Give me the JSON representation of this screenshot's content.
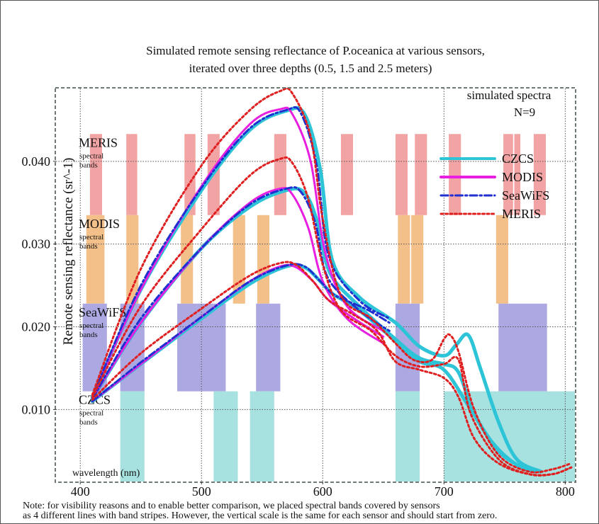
{
  "chart_data": {
    "type": "line",
    "title_line1": "Simulated remote sensing reflectance of P.oceanica at various sensors,",
    "title_line2": "iterated over three depths (0.5, 1.5 and 2.5 meters)",
    "xlabel": "wavelength (nm)",
    "ylabel": "Remote sensing reflectance (sr^-1)",
    "xlim": [
      380,
      808
    ],
    "ylim": [
      0.0013,
      0.0488
    ],
    "xticks": [
      400,
      500,
      600,
      700,
      800
    ],
    "yticks": [
      0.01,
      0.02,
      0.03,
      0.04
    ],
    "ytick_labels": [
      "0.010",
      "0.020",
      "0.030",
      "0.040"
    ],
    "grid": true,
    "annotation": [
      "simulated spectra",
      "N=9"
    ],
    "legend_position": "top-right",
    "legend": [
      {
        "label": "CZCS",
        "color": "#2ec4d8",
        "style": "solid"
      },
      {
        "label": "MODIS",
        "color": "#e81ee0",
        "style": "solid"
      },
      {
        "label": "SeaWiFS",
        "color": "#1f2fd0",
        "style": "dashdot"
      },
      {
        "label": "MERIS",
        "color": "#e02020",
        "style": "dotted"
      }
    ],
    "band_groups": [
      {
        "sensor": "MERIS",
        "label": "MERIS",
        "sublabel": "spectral bands",
        "color": "#f2a3a3",
        "y_range": [
          0.0335,
          0.0433
        ],
        "bands": [
          [
            408,
            418
          ],
          [
            438,
            447
          ],
          [
            486,
            495
          ],
          [
            505,
            515
          ],
          [
            560,
            570
          ],
          [
            615,
            625
          ],
          [
            660,
            670
          ],
          [
            676,
            686
          ],
          [
            704,
            714
          ],
          [
            749,
            757
          ],
          [
            758,
            763
          ],
          [
            774,
            784
          ]
        ]
      },
      {
        "sensor": "MODIS",
        "label": "MODIS",
        "sublabel": "spectral bands",
        "color": "#f4c08a",
        "y_range": [
          0.0228,
          0.0335
        ],
        "bands": [
          [
            405,
            420
          ],
          [
            438,
            448
          ],
          [
            483,
            493
          ],
          [
            526,
            536
          ],
          [
            546,
            556
          ],
          [
            662,
            672
          ],
          [
            673,
            683
          ],
          [
            743,
            753
          ]
        ]
      },
      {
        "sensor": "SeaWiFS",
        "label": "SeaWiFS",
        "sublabel": "spectral bands",
        "color": "#aca8e2",
        "y_range": [
          0.0122,
          0.0228
        ],
        "bands": [
          [
            402,
            422
          ],
          [
            433,
            453
          ],
          [
            480,
            500
          ],
          [
            500,
            520
          ],
          [
            545,
            565
          ],
          [
            660,
            680
          ],
          [
            745,
            785
          ]
        ]
      },
      {
        "sensor": "CZCS",
        "label": "CZCS",
        "sublabel": "spectral bands",
        "color": "#a8e2e0",
        "y_range": [
          0.0013,
          0.0122
        ],
        "bands": [
          [
            433,
            453
          ],
          [
            510,
            530
          ],
          [
            540,
            560
          ],
          [
            660,
            680
          ],
          [
            700,
            808
          ]
        ]
      }
    ],
    "series": [
      {
        "name": "CZCS",
        "color": "#2ec4d8",
        "style": "solid",
        "width": 5,
        "curves": [
          [
            [
              410,
              0.0115
            ],
            [
              450,
              0.0245
            ],
            [
              500,
              0.0365
            ],
            [
              540,
              0.0438
            ],
            [
              570,
              0.0461
            ],
            [
              585,
              0.0457
            ],
            [
              598,
              0.039
            ],
            [
              608,
              0.028
            ],
            [
              630,
              0.0236
            ],
            [
              660,
              0.0205
            ],
            [
              680,
              0.0176
            ],
            [
              700,
              0.0165
            ],
            [
              710,
              0.0178
            ],
            [
              720,
              0.019
            ],
            [
              730,
              0.015
            ],
            [
              745,
              0.0085
            ],
            [
              760,
              0.004
            ],
            [
              780,
              0.0025
            ]
          ],
          [
            [
              410,
              0.0113
            ],
            [
              450,
              0.0205
            ],
            [
              500,
              0.0295
            ],
            [
              540,
              0.0345
            ],
            [
              570,
              0.0365
            ],
            [
              585,
              0.0362
            ],
            [
              596,
              0.0325
            ],
            [
              606,
              0.0265
            ],
            [
              630,
              0.0225
            ],
            [
              660,
              0.0185
            ],
            [
              680,
              0.0162
            ],
            [
              700,
              0.0155
            ],
            [
              712,
              0.0145
            ],
            [
              725,
              0.0095
            ],
            [
              745,
              0.005
            ],
            [
              765,
              0.003
            ],
            [
              780,
              0.0025
            ]
          ],
          [
            [
              410,
              0.011
            ],
            [
              450,
              0.0155
            ],
            [
              500,
              0.021
            ],
            [
              540,
              0.0252
            ],
            [
              570,
              0.0273
            ],
            [
              585,
              0.0272
            ],
            [
              598,
              0.0255
            ],
            [
              608,
              0.024
            ],
            [
              630,
              0.022
            ],
            [
              660,
              0.0183
            ],
            [
              680,
              0.0158
            ],
            [
              700,
              0.0148
            ],
            [
              720,
              0.0105
            ],
            [
              740,
              0.006
            ],
            [
              760,
              0.0033
            ],
            [
              775,
              0.0025
            ]
          ]
        ]
      },
      {
        "name": "MODIS",
        "color": "#e81ee0",
        "style": "solid",
        "width": 3,
        "curves": [
          [
            [
              410,
              0.0115
            ],
            [
              450,
              0.0245
            ],
            [
              500,
              0.037
            ],
            [
              540,
              0.0445
            ],
            [
              565,
              0.0463
            ],
            [
              575,
              0.0457
            ],
            [
              590,
              0.04
            ],
            [
              602,
              0.029
            ],
            [
              620,
              0.0225
            ],
            [
              650,
              0.0195
            ]
          ],
          [
            [
              410,
              0.0113
            ],
            [
              450,
              0.0205
            ],
            [
              500,
              0.0295
            ],
            [
              540,
              0.035
            ],
            [
              565,
              0.0367
            ],
            [
              575,
              0.036
            ],
            [
              588,
              0.032
            ],
            [
              600,
              0.0255
            ],
            [
              620,
              0.021
            ],
            [
              650,
              0.018
            ]
          ],
          [
            [
              410,
              0.011
            ],
            [
              450,
              0.0155
            ],
            [
              500,
              0.0212
            ],
            [
              540,
              0.0255
            ],
            [
              565,
              0.0273
            ],
            [
              578,
              0.0272
            ],
            [
              592,
              0.0255
            ],
            [
              605,
              0.0232
            ],
            [
              630,
              0.0206
            ],
            [
              650,
              0.0188
            ]
          ]
        ]
      },
      {
        "name": "SeaWiFS",
        "color": "#1f2fd0",
        "style": "dashdot",
        "width": 3,
        "curves": [
          [
            [
              410,
              0.0115
            ],
            [
              450,
              0.025
            ],
            [
              500,
              0.0368
            ],
            [
              540,
              0.044
            ],
            [
              570,
              0.0462
            ],
            [
              582,
              0.0458
            ],
            [
              595,
              0.0395
            ],
            [
              605,
              0.0285
            ],
            [
              630,
              0.0232
            ],
            [
              655,
              0.021
            ]
          ],
          [
            [
              410,
              0.0113
            ],
            [
              450,
              0.021
            ],
            [
              500,
              0.0295
            ],
            [
              540,
              0.0348
            ],
            [
              570,
              0.0367
            ],
            [
              582,
              0.0363
            ],
            [
              594,
              0.0325
            ],
            [
              604,
              0.026
            ],
            [
              630,
              0.022
            ],
            [
              655,
              0.0195
            ]
          ],
          [
            [
              410,
              0.011
            ],
            [
              450,
              0.0157
            ],
            [
              500,
              0.0212
            ],
            [
              540,
              0.0255
            ],
            [
              570,
              0.0274
            ],
            [
              585,
              0.0273
            ],
            [
              598,
              0.0255
            ],
            [
              610,
              0.0238
            ],
            [
              635,
              0.0222
            ],
            [
              655,
              0.0205
            ]
          ]
        ]
      },
      {
        "name": "MERIS",
        "color": "#e02020",
        "style": "dotted",
        "width": 3,
        "curves": [
          [
            [
              410,
              0.0118
            ],
            [
              450,
              0.027
            ],
            [
              500,
              0.0395
            ],
            [
              540,
              0.0462
            ],
            [
              565,
              0.0485
            ],
            [
              575,
              0.0482
            ],
            [
              590,
              0.043
            ],
            [
              600,
              0.033
            ],
            [
              615,
              0.0238
            ],
            [
              640,
              0.021
            ],
            [
              660,
              0.018
            ],
            [
              675,
              0.016
            ],
            [
              690,
              0.016
            ],
            [
              700,
              0.0185
            ],
            [
              705,
              0.019
            ],
            [
              712,
              0.017
            ],
            [
              725,
              0.01
            ],
            [
              745,
              0.0045
            ],
            [
              770,
              0.0025
            ],
            [
              790,
              0.0028
            ],
            [
              805,
              0.0035
            ]
          ],
          [
            [
              410,
              0.0115
            ],
            [
              450,
              0.0225
            ],
            [
              500,
              0.0318
            ],
            [
              540,
              0.0383
            ],
            [
              565,
              0.0403
            ],
            [
              575,
              0.0398
            ],
            [
              588,
              0.0355
            ],
            [
              600,
              0.0275
            ],
            [
              615,
              0.022
            ],
            [
              640,
              0.0195
            ],
            [
              660,
              0.0165
            ],
            [
              680,
              0.0152
            ],
            [
              700,
              0.0155
            ],
            [
              712,
              0.016
            ],
            [
              722,
              0.0095
            ],
            [
              745,
              0.004
            ],
            [
              770,
              0.0022
            ],
            [
              790,
              0.0022
            ],
            [
              805,
              0.003
            ]
          ],
          [
            [
              410,
              0.0112
            ],
            [
              450,
              0.0168
            ],
            [
              500,
              0.0222
            ],
            [
              540,
              0.0262
            ],
            [
              565,
              0.0277
            ],
            [
              578,
              0.0275
            ],
            [
              592,
              0.0255
            ],
            [
              605,
              0.0232
            ],
            [
              625,
              0.0215
            ],
            [
              645,
              0.0195
            ],
            [
              660,
              0.0158
            ],
            [
              680,
              0.0148
            ],
            [
              700,
              0.0138
            ],
            [
              712,
              0.0115
            ],
            [
              725,
              0.0065
            ],
            [
              745,
              0.0035
            ],
            [
              770,
              0.0022
            ],
            [
              790,
              0.0022
            ],
            [
              805,
              0.003
            ]
          ]
        ]
      }
    ]
  },
  "note_line1": "Note: for visibility reasons and to enable better comparison, we placed spectral bands covered by sensors",
  "note_line2": "as 4 different lines with band stripes. However, the vertical scale is the same for each sensor and should start from zero."
}
